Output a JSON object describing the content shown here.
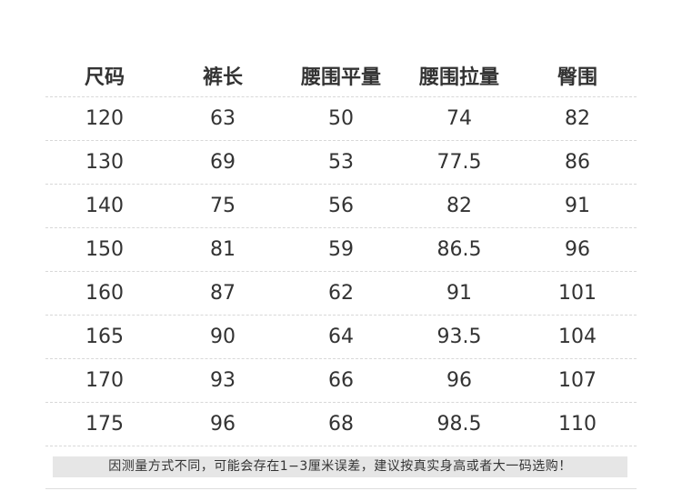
{
  "headers": [
    "尺码",
    "裤长",
    "腰围平量",
    "腰围拉量",
    "臀围"
  ],
  "rows": [
    [
      "120",
      "63",
      "50",
      "74",
      "82"
    ],
    [
      "130",
      "69",
      "53",
      "77.5",
      "86"
    ],
    [
      "140",
      "75",
      "56",
      "82",
      "91"
    ],
    [
      "150",
      "81",
      "59",
      "86.5",
      "96"
    ],
    [
      "160",
      "87",
      "62",
      "91",
      "101"
    ],
    [
      "165",
      "90",
      "64",
      "93.5",
      "104"
    ],
    [
      "170",
      "93",
      "66",
      "96",
      "107"
    ],
    [
      "175",
      "96",
      "68",
      "98.5",
      "110"
    ]
  ],
  "note": "因测量方式不同，可能会存在1−3厘米误差，建议按真实身高或者大一码选购！"
}
